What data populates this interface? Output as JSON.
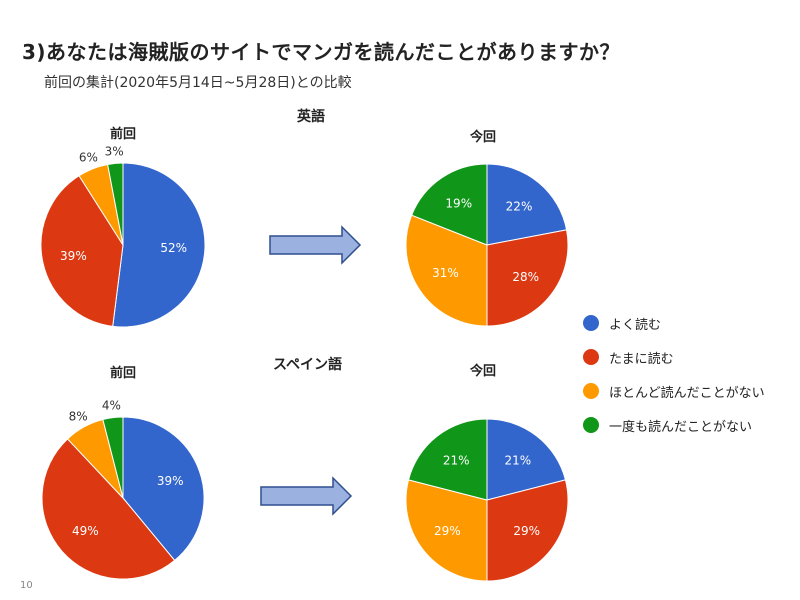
{
  "slide": {
    "title": "3)あなたは海賊版のサイトでマンガを読んだことがありますか？",
    "subtitle": "前回の集計(2020年5月14日~5月28日)との比較",
    "page_number": "10"
  },
  "sections": [
    {
      "name": "英語"
    },
    {
      "name": "スペイン語"
    }
  ],
  "colors": {
    "blue": "#3366cc",
    "red": "#dc3912",
    "orange": "#ff9900",
    "green": "#109618",
    "arrow_fill": "#9bb2e1",
    "arrow_stroke": "#2f4f8f"
  },
  "legend": [
    {
      "label": "よく読む",
      "color": "#3366cc"
    },
    {
      "label": "たまに読む",
      "color": "#dc3912"
    },
    {
      "label": "ほとんど読んだことがない",
      "color": "#ff9900"
    },
    {
      "label": "一度も読んだことがない",
      "color": "#109618"
    }
  ],
  "chart_data": [
    {
      "type": "pie",
      "title": "前回",
      "section": "英語",
      "labels": [
        "よく読む",
        "たまに読む",
        "ほとんど読んだことがない",
        "一度も読んだことがない"
      ],
      "values": [
        52,
        39,
        6,
        3
      ],
      "value_labels": [
        "52%",
        "39%",
        "6%",
        "3%"
      ]
    },
    {
      "type": "pie",
      "title": "今回",
      "section": "英語",
      "labels": [
        "よく読む",
        "たまに読む",
        "ほとんど読んだことがない",
        "一度も読んだことがない"
      ],
      "values": [
        22,
        28,
        31,
        19
      ],
      "value_labels": [
        "22%",
        "28%",
        "31%",
        "19%"
      ]
    },
    {
      "type": "pie",
      "title": "前回",
      "section": "スペイン語",
      "labels": [
        "よく読む",
        "たまに読む",
        "ほとんど読んだことがない",
        "一度も読んだことがない"
      ],
      "values": [
        39,
        49,
        8,
        4
      ],
      "value_labels": [
        "39%",
        "49%",
        "8%",
        "4%"
      ]
    },
    {
      "type": "pie",
      "title": "今回",
      "section": "スペイン語",
      "labels": [
        "よく読む",
        "たまに読む",
        "ほとんど読んだことがない",
        "一度も読んだことがない"
      ],
      "values": [
        21,
        29,
        29,
        21
      ],
      "value_labels": [
        "21%",
        "29%",
        "29%",
        "21%"
      ]
    }
  ]
}
